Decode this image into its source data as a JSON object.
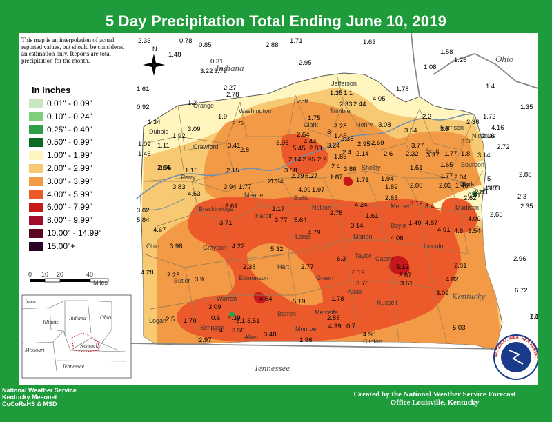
{
  "title": "5 Day Precipitation Total Ending June 10, 2019",
  "note": "This map is an interpolation of actual reported values, but should be considered an estimation only. Reports are total precipitation for the month.",
  "legend": {
    "title": "In Inches",
    "items": [
      {
        "label": "0.01\" - 0.09\"",
        "color": "#c8e6c0"
      },
      {
        "label": "0.10\" - 0.24\"",
        "color": "#7fcf7b"
      },
      {
        "label": "0.25\" - 0.49\"",
        "color": "#2e9e49"
      },
      {
        "label": "0.50\" - 0.99\"",
        "color": "#0b6b25"
      },
      {
        "label": "1.00\" - 1.99\"",
        "color": "#fff6bf"
      },
      {
        "label": "2.00\" - 2.99\"",
        "color": "#f6c972"
      },
      {
        "label": "3.00\" - 3.99\"",
        "color": "#f39a46"
      },
      {
        "label": "4.00\" - 5.99\"",
        "color": "#ec5a2c"
      },
      {
        "label": "6.00\" - 7.99\"",
        "color": "#c8161b"
      },
      {
        "label": "8.00\" - 9.99\"",
        "color": "#a10c2a"
      },
      {
        "label": "10.00\" - 14.99\"",
        "color": "#5b0620"
      },
      {
        "label": "15.00\"+",
        "color": "#2b0225"
      }
    ]
  },
  "scale": {
    "ticks": [
      "0",
      "10",
      "20",
      "40"
    ],
    "unit": "Miles"
  },
  "compass_label": "N",
  "states": {
    "indiana": "Indiana",
    "ohio": "Ohio",
    "kentucky": "Kentucky",
    "tennessee": "Tennessee"
  },
  "inset_states": {
    "iowa": "Iowa",
    "illinois": "Illinois",
    "indiana": "Indiana",
    "ohio": "Ohio",
    "missouri": "Missouri",
    "kentucky": "Kentucky",
    "tennessee": "Tennessee"
  },
  "counties": [
    {
      "name": "Orange"
    },
    {
      "name": "Washington"
    },
    {
      "name": "Scott"
    },
    {
      "name": "Jefferson"
    },
    {
      "name": "Dubois"
    },
    {
      "name": "Crawford"
    },
    {
      "name": "Clark"
    },
    {
      "name": "Trimble"
    },
    {
      "name": "Henry"
    },
    {
      "name": "Harrison"
    },
    {
      "name": "Nicholas"
    },
    {
      "name": "Scott"
    },
    {
      "name": "Bourbon"
    },
    {
      "name": "Clark"
    },
    {
      "name": "Perry"
    },
    {
      "name": "Meade"
    },
    {
      "name": "Bullitt"
    },
    {
      "name": "Shelby"
    },
    {
      "name": "Mercer"
    },
    {
      "name": "Madison"
    },
    {
      "name": "Breckinridge"
    },
    {
      "name": "Hardin"
    },
    {
      "name": "Nelson"
    },
    {
      "name": "Boyle"
    },
    {
      "name": "Ohio"
    },
    {
      "name": "Grayson"
    },
    {
      "name": "Larue"
    },
    {
      "name": "Marion"
    },
    {
      "name": "Lincoln"
    },
    {
      "name": "Taylor"
    },
    {
      "name": "Casey"
    },
    {
      "name": "Butler"
    },
    {
      "name": "Edmonson"
    },
    {
      "name": "Hart"
    },
    {
      "name": "Green"
    },
    {
      "name": "Adair"
    },
    {
      "name": "Russell"
    },
    {
      "name": "Warren"
    },
    {
      "name": "Barren"
    },
    {
      "name": "Metcalfe"
    },
    {
      "name": "Logan"
    },
    {
      "name": "Simpson"
    },
    {
      "name": "Allen"
    },
    {
      "name": "Monroe"
    },
    {
      "name": "Clinton"
    }
  ],
  "values": [
    "2.33",
    "0.78",
    "0.85",
    "2.88",
    "1.71",
    "1.63",
    "1.48",
    "0.31",
    "3.22",
    "3.79",
    "2.95",
    "1.58",
    "1.08",
    "1.26",
    "2.27",
    "2.78",
    "1.61",
    "1.35",
    "1.1",
    "1.78",
    "4.05",
    "1.4",
    "1.35",
    "0.92",
    "1.2",
    "1.9",
    "2.72",
    "2.33",
    "2.44",
    "2.2",
    "1.72",
    "1.34",
    "3.09",
    "1.75",
    "2.28",
    "3.08",
    "2.36",
    "4.16",
    "1.92",
    "2.64",
    "3",
    "3.54",
    "3.5",
    "2.16",
    "1.09",
    "1.11",
    "4.44",
    "1.45",
    "3.38",
    "1.46",
    "3.41",
    "2.8",
    "3.95",
    "2.35",
    "2.69",
    "3.24",
    "2.95",
    "5.45",
    "3.77",
    "2.72",
    "2.83",
    "1.77",
    "1.8",
    "2.4",
    "2.14",
    "2.95",
    "2.2",
    "1.85",
    "2.14",
    "2.6",
    "3.37",
    "3.14",
    "1.65",
    "2.04",
    "0.95",
    "1.16",
    "2.15",
    "3.58",
    "2.4",
    "3.86",
    "1.61",
    "1.77",
    "2.32",
    "2.88",
    "2.7",
    "2.39",
    "6.27",
    "1.87",
    "1.71",
    "1.94",
    "2.04",
    "5",
    "3.83",
    "4.63",
    "3.94",
    "1.77",
    "1.34",
    "4.09",
    "1.97",
    "1.89",
    "2.08",
    "2.03",
    "1.46",
    "0.91",
    "2.83",
    "3.83",
    "2.3",
    "3.62",
    "3.61",
    "2.17",
    "2.63",
    "3.12",
    "3.4",
    "2.62",
    "4.17",
    "2.35",
    "5.84",
    "3.71",
    "3.77",
    "5.64",
    "2.78",
    "4.24",
    "1.61",
    "1.49",
    "4.87",
    "4.09",
    "2.65",
    "4.67",
    "4.79",
    "3.14",
    "4.91",
    "4.6",
    "3.54",
    "3.98",
    "4.22",
    "5.32",
    "4.06",
    "4.28",
    "2.38",
    "2.77",
    "6.3",
    "5.12",
    "2.81",
    "2.96",
    "2.25",
    "3.9",
    "6.19",
    "3.67",
    "4.82",
    "3.76",
    "3.61",
    "3.09",
    "6.72",
    "4.54",
    "5.19",
    "1.78",
    "2.8",
    "1.13",
    "2.5",
    "1.79",
    "3.09",
    "0.6",
    "4.39",
    "3.1",
    "2.88",
    "4.39",
    "0.7",
    "3.51",
    "5.03",
    "5.4",
    "3.55",
    "3.48",
    "4.98",
    "2.97",
    "1.96"
  ],
  "credits_left": [
    "National Weather Service",
    "Kentucky Mesonet",
    "CoCoRaHS & MSD"
  ],
  "credits_right": [
    "Created by the National Weather Service Forecast",
    "Office Louisville, Kentucky"
  ],
  "nws_logo_text": "NATIONAL WEATHER SERVICE"
}
